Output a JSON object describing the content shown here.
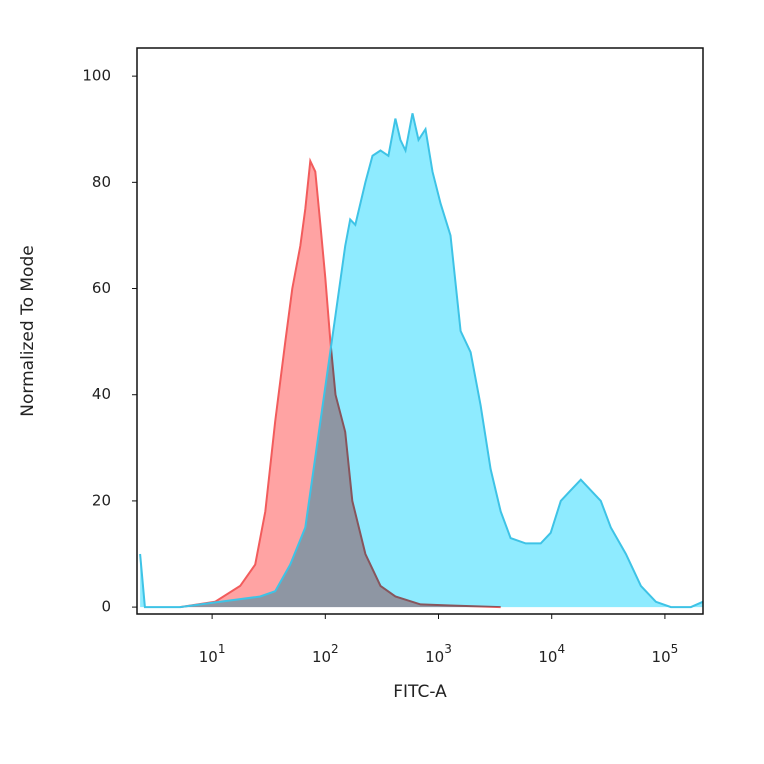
{
  "chart_data": {
    "type": "area",
    "x_label": "FITC-A",
    "y_label": "Normalized To Mode",
    "xscale": "log",
    "xlim": [
      2.17,
      217000
    ],
    "ylim": [
      -1.3,
      105.3
    ],
    "xticks": [
      {
        "value": 10,
        "label": "10",
        "exponent": "1"
      },
      {
        "value": 100,
        "label": "10",
        "exponent": "2"
      },
      {
        "value": 1000,
        "label": "10",
        "exponent": "3"
      },
      {
        "value": 10000,
        "label": "10",
        "exponent": "4"
      },
      {
        "value": 100000,
        "label": "10",
        "exponent": "5"
      }
    ],
    "yticks": [
      0,
      20,
      40,
      60,
      80,
      100
    ],
    "series": [
      {
        "color": "#f25c5c",
        "fill": "#ffa3a3",
        "x": [
          5.2,
          10.6,
          17.7,
          24.0,
          29.5,
          36.1,
          44.3,
          51.1,
          60.1,
          66.5,
          73.7,
          81.6,
          90.4,
          100,
          111,
          123,
          150,
          173,
          226,
          307,
          416,
          693,
          1276,
          3540
        ],
        "values": [
          0,
          1,
          4,
          8,
          18,
          35,
          50,
          60,
          68,
          75,
          84,
          82,
          72,
          62,
          50,
          40,
          33,
          20,
          10,
          4,
          2,
          0.5,
          0.3,
          0
        ]
      },
      {
        "color": "#3ec3e6",
        "fill": "#8eebff",
        "x": [
          2.31,
          2.55,
          5.2,
          11.8,
          26.6,
          36.1,
          49.0,
          66.5,
          90.4,
          123,
          150,
          166,
          184,
          226,
          261,
          307,
          361,
          416,
          461,
          511,
          589,
          666,
          767,
          885,
          1043,
          1276,
          1567,
          1920,
          2355,
          2884,
          3540,
          4335,
          5888,
          8000,
          9795,
          12020,
          14720,
          18070,
          22130,
          27160,
          33270,
          45190,
          61380,
          83180,
          113000,
          169800,
          216000
        ],
        "values": [
          10,
          0,
          0,
          1,
          2,
          3,
          8,
          15,
          35,
          55,
          68,
          73,
          72,
          80,
          85,
          86,
          85,
          92,
          88,
          86,
          93,
          88,
          90,
          82,
          76,
          70,
          52,
          48,
          38,
          26,
          18,
          13,
          12,
          12,
          14,
          20,
          22,
          24,
          22,
          20,
          15,
          10,
          4,
          1,
          0,
          0,
          1
        ]
      }
    ]
  }
}
